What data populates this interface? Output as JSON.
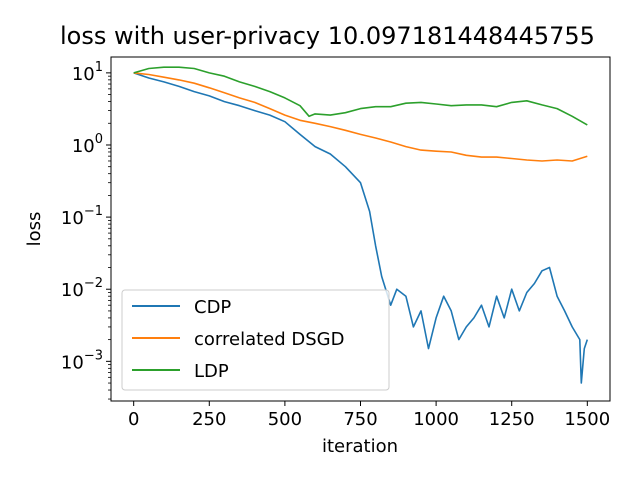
{
  "chart_data": {
    "type": "line",
    "title": "loss with user-privacy  10.097181448445755",
    "xlabel": "iteration",
    "ylabel": "loss",
    "xlim": [
      -75,
      1575
    ],
    "ylim_log10": [
      -3.55,
      1.22
    ],
    "yscale": "log",
    "grid": false,
    "legend_position": "lower-left",
    "x_ticks": [
      {
        "value": 0,
        "label": "0"
      },
      {
        "value": 250,
        "label": "250"
      },
      {
        "value": 500,
        "label": "500"
      },
      {
        "value": 750,
        "label": "750"
      },
      {
        "value": 1000,
        "label": "1000"
      },
      {
        "value": 1250,
        "label": "1250"
      },
      {
        "value": 1500,
        "label": "1500"
      }
    ],
    "y_ticks": [
      {
        "exp": 1,
        "base": "10",
        "sup": "1"
      },
      {
        "exp": 0,
        "base": "10",
        "sup": "0"
      },
      {
        "exp": -1,
        "base": "10",
        "sup": "−1"
      },
      {
        "exp": -2,
        "base": "10",
        "sup": "−2"
      },
      {
        "exp": -3,
        "base": "10",
        "sup": "−3"
      }
    ],
    "series": [
      {
        "name": "CDP",
        "color": "#1f77b4",
        "x": [
          0,
          50,
          100,
          150,
          200,
          250,
          300,
          350,
          400,
          450,
          500,
          550,
          600,
          650,
          700,
          750,
          780,
          800,
          820,
          850,
          870,
          900,
          925,
          950,
          975,
          1000,
          1025,
          1050,
          1075,
          1100,
          1125,
          1150,
          1175,
          1200,
          1225,
          1250,
          1275,
          1300,
          1325,
          1350,
          1375,
          1400,
          1425,
          1450,
          1475,
          1480,
          1490,
          1500
        ],
        "y": [
          10,
          8.5,
          7.5,
          6.5,
          5.5,
          4.8,
          4.0,
          3.5,
          3.0,
          2.6,
          2.1,
          1.4,
          0.95,
          0.75,
          0.5,
          0.3,
          0.12,
          0.04,
          0.015,
          0.006,
          0.01,
          0.008,
          0.003,
          0.005,
          0.0015,
          0.004,
          0.008,
          0.005,
          0.002,
          0.003,
          0.004,
          0.006,
          0.003,
          0.008,
          0.004,
          0.01,
          0.005,
          0.009,
          0.012,
          0.018,
          0.02,
          0.008,
          0.005,
          0.003,
          0.002,
          0.0005,
          0.0015,
          0.002
        ]
      },
      {
        "name": "correlated DSGD",
        "color": "#ff7f0e",
        "x": [
          0,
          50,
          100,
          150,
          200,
          250,
          300,
          350,
          400,
          450,
          500,
          550,
          600,
          650,
          700,
          750,
          800,
          850,
          900,
          950,
          1000,
          1050,
          1100,
          1150,
          1200,
          1250,
          1300,
          1350,
          1400,
          1450,
          1500
        ],
        "y": [
          10,
          9.5,
          8.7,
          8.0,
          7.2,
          6.2,
          5.3,
          4.5,
          3.9,
          3.2,
          2.6,
          2.2,
          2.0,
          1.8,
          1.6,
          1.4,
          1.25,
          1.1,
          0.95,
          0.85,
          0.82,
          0.8,
          0.72,
          0.68,
          0.68,
          0.65,
          0.62,
          0.6,
          0.62,
          0.6,
          0.7
        ]
      },
      {
        "name": "LDP",
        "color": "#2ca02c",
        "x": [
          0,
          50,
          100,
          150,
          200,
          250,
          300,
          350,
          400,
          450,
          500,
          550,
          580,
          600,
          650,
          700,
          750,
          800,
          850,
          900,
          950,
          1000,
          1050,
          1100,
          1150,
          1200,
          1250,
          1300,
          1350,
          1400,
          1450,
          1500
        ],
        "y": [
          10,
          11.5,
          12,
          12,
          11.5,
          10,
          9,
          7.5,
          6.5,
          5.5,
          4.5,
          3.5,
          2.5,
          2.7,
          2.6,
          2.8,
          3.2,
          3.4,
          3.4,
          3.8,
          3.9,
          3.7,
          3.5,
          3.6,
          3.6,
          3.4,
          3.9,
          4.1,
          3.6,
          3.2,
          2.5,
          1.9
        ]
      }
    ]
  }
}
